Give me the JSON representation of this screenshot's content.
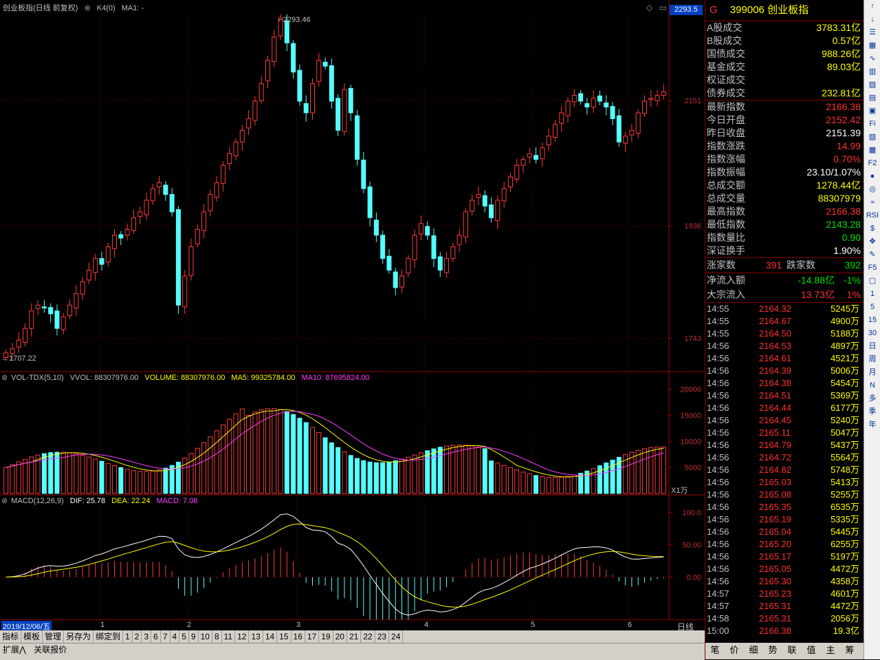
{
  "header": {
    "title": "创业板指(日线 前复权)",
    "k4": "K4(0)",
    "ma1": "MA1: -",
    "price_box": "2293.5"
  },
  "vol_header": {
    "name": "VOL-TDX(5,10)",
    "vvol": "VVOL: 88307976.00",
    "volume": "VOLUME: 88307976.00",
    "ma5": "MA5: 99325784.00",
    "ma10": "MA10: 87695824.00"
  },
  "macd_header": {
    "name": "MACD(12,26,9)",
    "dif": "DIF: 25.78",
    "dea": "DEA: 22.24",
    "macd": "MACD: 7.08"
  },
  "price_axis": [
    "2151",
    "1936",
    "1743"
  ],
  "vol_axis": [
    "20000",
    "15000",
    "10000",
    "5000"
  ],
  "vol_unit": "X1万",
  "macd_axis": [
    "100.0",
    "50.00",
    "0.00"
  ],
  "annotations": {
    "high": "2293.46",
    "low": "1707.22"
  },
  "date_bar": {
    "current": "2019/12/06/五",
    "months": [
      "1",
      "2",
      "3",
      "4",
      "5",
      "6"
    ],
    "period": "日线"
  },
  "tabs": [
    "指标",
    "模板",
    "管理",
    "另存为",
    "绑定到",
    "1",
    "2",
    "3",
    "6",
    "7",
    "4",
    "5",
    "9",
    "10",
    "8",
    "11",
    "12",
    "13",
    "14",
    "15",
    "16",
    "17",
    "19",
    "20",
    "21",
    "22",
    "23",
    "24"
  ],
  "bottom_tabs": [
    "扩展⋀",
    "关联报价"
  ],
  "panel": {
    "flag": "G",
    "code": "399006 创业板指",
    "trade_stats": [
      {
        "label": "A股成交",
        "value": "3783.31亿",
        "color": "#ffff00"
      },
      {
        "label": "B股成交",
        "value": "0.57亿",
        "color": "#ffff00"
      },
      {
        "label": "国债成交",
        "value": "988.26亿",
        "color": "#ffff00"
      },
      {
        "label": "基金成交",
        "value": "89.03亿",
        "color": "#ffff00"
      },
      {
        "label": "权证成交",
        "value": "",
        "color": "#ffff00"
      },
      {
        "label": "债券成交",
        "value": "232.81亿",
        "color": "#ffff00"
      }
    ],
    "index_stats": [
      {
        "label": "最新指数",
        "value": "2166.38",
        "color": "#ff3030"
      },
      {
        "label": "今日开盘",
        "value": "2152.42",
        "color": "#ff3030"
      },
      {
        "label": "昨日收盘",
        "value": "2151.39",
        "color": "#ffffff"
      },
      {
        "label": "指数涨跌",
        "value": "14.99",
        "color": "#ff3030"
      },
      {
        "label": "指数涨幅",
        "value": "0.70%",
        "color": "#ff3030"
      },
      {
        "label": "指数振幅",
        "value": "23.10/1.07%",
        "color": "#ffffff"
      },
      {
        "label": "总成交额",
        "value": "1278.44亿",
        "color": "#ffff00"
      },
      {
        "label": "总成交量",
        "value": "88307979",
        "color": "#ffff00"
      },
      {
        "label": "最高指数",
        "value": "2166.38",
        "color": "#ff3030"
      },
      {
        "label": "最低指数",
        "value": "2143.28",
        "color": "#00e000"
      },
      {
        "label": "指数量比",
        "value": "0.90",
        "color": "#00e000"
      },
      {
        "label": "深证换手",
        "value": "1.90%",
        "color": "#ffffff"
      }
    ],
    "breadth": {
      "up_label": "涨家数",
      "up": "391",
      "down_label": "跌家数",
      "down": "392"
    },
    "flows": [
      {
        "label": "净流入额",
        "value": "-14.88亿",
        "pct": "-1%",
        "color": "#00e000"
      },
      {
        "label": "大宗流入",
        "value": "13.73亿",
        "pct": "1%",
        "color": "#ff3030"
      }
    ],
    "ticks": [
      {
        "t": "14:55",
        "p": "2164.32",
        "v": "5245万"
      },
      {
        "t": "14:55",
        "p": "2164.67",
        "v": "4900万"
      },
      {
        "t": "14:55",
        "p": "2164.50",
        "v": "5188万"
      },
      {
        "t": "14:56",
        "p": "2164.53",
        "v": "4897万"
      },
      {
        "t": "14:56",
        "p": "2164.61",
        "v": "4521万"
      },
      {
        "t": "14:56",
        "p": "2164.39",
        "v": "5006万"
      },
      {
        "t": "14:56",
        "p": "2164.38",
        "v": "5454万"
      },
      {
        "t": "14:56",
        "p": "2164.51",
        "v": "5369万"
      },
      {
        "t": "14:56",
        "p": "2164.44",
        "v": "6177万"
      },
      {
        "t": "14:56",
        "p": "2164.45",
        "v": "5240万"
      },
      {
        "t": "14:56",
        "p": "2165.11",
        "v": "5047万"
      },
      {
        "t": "14:56",
        "p": "2164.79",
        "v": "5437万"
      },
      {
        "t": "14:56",
        "p": "2164.72",
        "v": "5564万"
      },
      {
        "t": "14:56",
        "p": "2164.82",
        "v": "5748万"
      },
      {
        "t": "14:56",
        "p": "2165.03",
        "v": "5413万"
      },
      {
        "t": "14:56",
        "p": "2165.08",
        "v": "5255万"
      },
      {
        "t": "14:56",
        "p": "2165.35",
        "v": "6535万"
      },
      {
        "t": "14:56",
        "p": "2165.19",
        "v": "5335万"
      },
      {
        "t": "14:56",
        "p": "2165.04",
        "v": "5445万"
      },
      {
        "t": "14:56",
        "p": "2165.20",
        "v": "6255万"
      },
      {
        "t": "14:56",
        "p": "2165.17",
        "v": "5197万"
      },
      {
        "t": "14:56",
        "p": "2165.05",
        "v": "4472万"
      },
      {
        "t": "14:56",
        "p": "2165.30",
        "v": "4358万"
      },
      {
        "t": "14:57",
        "p": "2165.23",
        "v": "4601万"
      },
      {
        "t": "14:57",
        "p": "2165.31",
        "v": "4472万"
      },
      {
        "t": "14:58",
        "p": "2165.31",
        "v": "2056万"
      },
      {
        "t": "15:00",
        "p": "2166.38",
        "v": "19.3亿"
      }
    ],
    "bottom_tabs": [
      "笔",
      "价",
      "细",
      "势",
      "联",
      "值",
      "主",
      "筹"
    ]
  },
  "sidebar": [
    "1",
    "5",
    "15",
    "30",
    "日",
    "周",
    "月",
    "N",
    "多",
    "季",
    "年"
  ],
  "chart_data": {
    "type": "candlestick",
    "title": "创业板指(日线 前复权)",
    "ylim": [
      1700,
      2300
    ],
    "close_series": [
      1718,
      1725,
      1740,
      1760,
      1790,
      1800,
      1795,
      1785,
      1760,
      1780,
      1800,
      1820,
      1840,
      1860,
      1880,
      1870,
      1900,
      1920,
      1915,
      1930,
      1950,
      1960,
      1980,
      2000,
      2010,
      1990,
      1960,
      1800,
      1850,
      1900,
      1930,
      1960,
      1990,
      2010,
      2040,
      2060,
      2080,
      2100,
      2120,
      2150,
      2180,
      2220,
      2260,
      2293,
      2250,
      2200,
      2150,
      2130,
      2180,
      2220,
      2210,
      2150,
      2100,
      2170,
      2130,
      2050,
      2000,
      1950,
      1920,
      1880,
      1860,
      1830,
      1850,
      1880,
      1920,
      1940,
      1920,
      1880,
      1860,
      1880,
      1900,
      1920,
      1960,
      1980,
      1990,
      1970,
      1950,
      1980,
      2000,
      2020,
      2040,
      2050,
      2060,
      2050,
      2070,
      2090,
      2110,
      2130,
      2150,
      2160,
      2150,
      2140,
      2155,
      2150,
      2140,
      2120,
      2080,
      2090,
      2100,
      2130,
      2150,
      2155,
      2160,
      2166
    ],
    "volume": {
      "ylim": [
        0,
        21000
      ],
      "ma5_last": 9932.5784,
      "ma10_last": 8769.5824,
      "last": 8830.7976
    },
    "macd": {
      "ylim": [
        -60,
        110
      ],
      "dif_last": 25.78,
      "dea_last": 22.24,
      "macd_last": 7.08
    }
  }
}
